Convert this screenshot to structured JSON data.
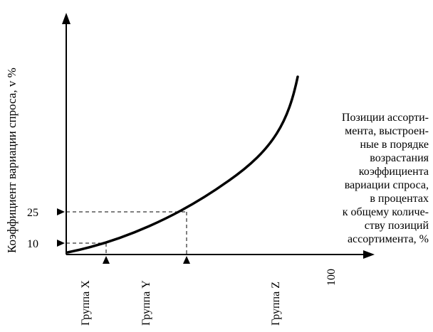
{
  "axes": {
    "y_label": "Коэффициент вариации спроса, v %",
    "y_ticks": [
      "25",
      "10"
    ],
    "x_tick": "100",
    "x_description_lines": [
      "Позиции ассорти-",
      "мента, выстроен-",
      "ные в порядке",
      "возрастания",
      "коэффициента",
      "вариации спроса,",
      "в процентах",
      "к общему количе-",
      "ству позиций",
      "ассортимента, %"
    ]
  },
  "groups": {
    "x": "Группа X",
    "y": "Группа Y",
    "z": "Группа Z"
  }
}
